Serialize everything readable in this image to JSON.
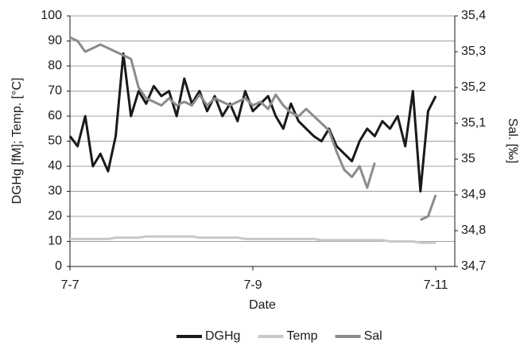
{
  "chart_data": {
    "type": "line",
    "x_label": "Date",
    "y_label": "DGHg [fM]; Temp. [°C]",
    "y2_label": "Sal. [‰]",
    "categories": [
      "7-7",
      null,
      null,
      null,
      null,
      null,
      null,
      null,
      null,
      null,
      null,
      null,
      null,
      null,
      null,
      null,
      null,
      null,
      null,
      null,
      null,
      null,
      null,
      null,
      "7-9",
      null,
      null,
      null,
      null,
      null,
      null,
      null,
      null,
      null,
      null,
      null,
      null,
      null,
      null,
      null,
      null,
      null,
      null,
      null,
      null,
      null,
      null,
      null,
      "7-11"
    ],
    "ylim": [
      0,
      100
    ],
    "yticks": [
      0,
      10,
      20,
      30,
      40,
      50,
      60,
      70,
      80,
      90,
      100
    ],
    "y2lim": [
      34.7,
      35.4
    ],
    "y2ticks": [
      {
        "value": 34.7,
        "label": "34,7"
      },
      {
        "value": 34.8,
        "label": "34,8"
      },
      {
        "value": 34.9,
        "label": "34,9"
      },
      35,
      {
        "value": 35.1,
        "label": "35,1"
      },
      {
        "value": 35.2,
        "label": "35,2"
      },
      {
        "value": 35.3,
        "label": "35,3"
      },
      {
        "value": 35.4,
        "label": "35,4"
      }
    ],
    "grid": true,
    "legend": "bottom",
    "series": [
      {
        "name": "DGHg",
        "color": "#1a1a1a",
        "values": [
          52,
          48,
          60,
          40,
          45,
          38,
          52,
          85,
          60,
          70,
          65,
          72,
          68,
          70,
          60,
          75,
          65,
          70,
          62,
          68,
          60,
          65,
          58,
          70,
          62,
          65,
          68,
          60,
          55,
          65,
          58,
          55,
          52,
          50,
          55,
          48,
          45,
          42,
          50,
          55,
          52,
          58,
          55,
          60,
          48,
          70,
          30,
          62,
          68
        ]
      },
      {
        "name": "Temp",
        "color": "#c8c8c8",
        "values": [
          11,
          11,
          11,
          11,
          11,
          11,
          11.5,
          11.5,
          11.5,
          11.5,
          12,
          12,
          12,
          12,
          12,
          12,
          12,
          11.5,
          11.5,
          11.5,
          11.5,
          11.5,
          11.5,
          11,
          11,
          11,
          11,
          11,
          11,
          11,
          11,
          11,
          11,
          10.5,
          10.5,
          10.5,
          10.5,
          10.5,
          10.5,
          10.5,
          10.5,
          10.5,
          10,
          10,
          10,
          10,
          9.5,
          9.5,
          9.5
        ]
      },
      {
        "name": "Sal",
        "color": "#8c8c8c",
        "axis": "y2",
        "values": [
          35.34,
          35.33,
          35.3,
          35.31,
          35.32,
          35.31,
          35.3,
          35.29,
          35.28,
          35.2,
          35.17,
          35.16,
          35.15,
          35.17,
          35.15,
          35.16,
          35.15,
          35.18,
          35.15,
          35.17,
          35.16,
          35.15,
          35.16,
          35.17,
          35.15,
          35.16,
          35.14,
          35.18,
          35.15,
          35.13,
          35.12,
          35.14,
          35.12,
          35.1,
          35.08,
          35.02,
          34.97,
          34.95,
          34.98,
          34.92,
          34.99,
          null,
          null,
          null,
          null,
          null,
          34.83,
          34.84,
          34.9
        ]
      }
    ]
  }
}
